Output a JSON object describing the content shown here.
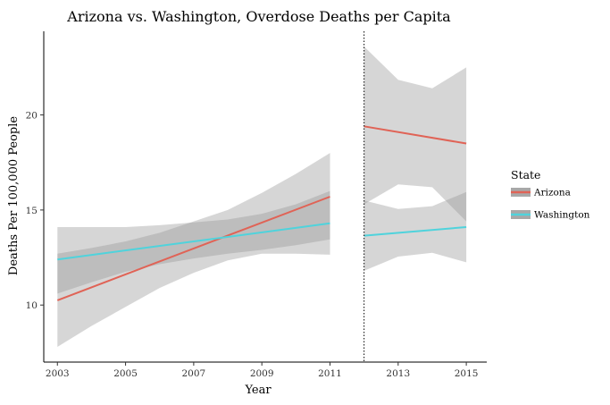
{
  "chart_data": {
    "type": "line",
    "title": "Arizona vs. Washington, Overdose Deaths per Capita",
    "xlabel": "Year",
    "ylabel": "Deaths Per 100,000 People",
    "xlim": [
      2002.6,
      2015.6
    ],
    "ylim": [
      7.0,
      24.4
    ],
    "x_ticks": [
      2003,
      2005,
      2007,
      2009,
      2011,
      2013,
      2015
    ],
    "x_tick_labels": [
      "2003",
      "2005",
      "2007",
      "2009",
      "2011",
      "2013",
      "2015"
    ],
    "y_ticks": [
      10,
      15,
      20
    ],
    "y_tick_labels": [
      "10",
      "15",
      "20"
    ],
    "vline_x": 2012,
    "grid": false,
    "legend": {
      "title": "State",
      "position": "right"
    },
    "series": [
      {
        "name": "Arizona",
        "color": "#e06356",
        "segments": [
          {
            "x": [
              2003,
              2011
            ],
            "y": [
              10.25,
              15.7
            ],
            "band_x": [
              2003,
              2004,
              2005,
              2006,
              2007,
              2008,
              2009,
              2010,
              2011
            ],
            "band_lower": [
              7.8,
              8.9,
              9.9,
              10.9,
              11.7,
              12.35,
              12.7,
              12.7,
              12.65
            ],
            "band_upper": [
              12.7,
              13.0,
              13.35,
              13.8,
              14.4,
              15.0,
              15.9,
              16.9,
              18.0
            ]
          },
          {
            "x": [
              2012,
              2015
            ],
            "y": [
              19.4,
              18.5
            ],
            "band_x": [
              2012,
              2013,
              2014,
              2015
            ],
            "band_lower": [
              15.3,
              16.35,
              16.2,
              14.4
            ],
            "band_upper": [
              23.6,
              21.85,
              21.4,
              22.5
            ]
          }
        ]
      },
      {
        "name": "Washington",
        "color": "#4fd3dc",
        "segments": [
          {
            "x": [
              2003,
              2011
            ],
            "y": [
              12.4,
              14.3
            ],
            "band_x": [
              2003,
              2004,
              2005,
              2006,
              2007,
              2008,
              2009,
              2010,
              2011
            ],
            "band_lower": [
              10.6,
              11.2,
              11.75,
              12.15,
              12.45,
              12.7,
              12.9,
              13.15,
              13.45
            ],
            "band_upper": [
              14.1,
              14.1,
              14.1,
              14.2,
              14.35,
              14.5,
              14.8,
              15.3,
              16.0
            ]
          },
          {
            "x": [
              2012,
              2015
            ],
            "y": [
              13.65,
              14.1
            ],
            "band_x": [
              2012,
              2013,
              2014,
              2015
            ],
            "band_lower": [
              11.8,
              12.55,
              12.75,
              12.25
            ],
            "band_upper": [
              15.5,
              15.05,
              15.2,
              15.95
            ]
          }
        ]
      }
    ]
  }
}
